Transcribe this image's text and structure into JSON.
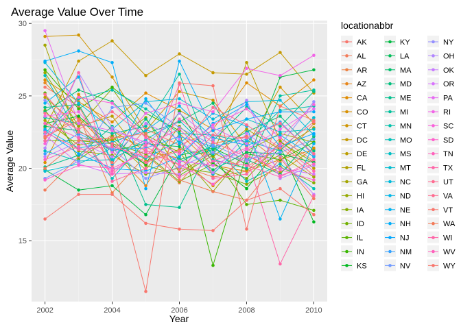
{
  "chart_data": {
    "type": "line",
    "title": "Average Value Over Time",
    "xlabel": "Year",
    "ylabel": "Average Value",
    "xlim": [
      2001.6,
      2010.4
    ],
    "ylim": [
      10.8,
      30.2
    ],
    "x_ticks": [
      2002,
      2004,
      2006,
      2008,
      2010
    ],
    "y_ticks": [
      15,
      20,
      25,
      30
    ],
    "grid": true,
    "legend_title": "locationabbr",
    "legend_position": "right",
    "x": [
      2002,
      2003,
      2004,
      2005,
      2006,
      2007,
      2008,
      2009,
      2010
    ],
    "series": [
      {
        "name": "AK",
        "color": "#F8766D",
        "values": [
          25.6,
          24.3,
          20.2,
          22.7,
          21.6,
          22.6,
          20.1,
          21.5,
          19.5
        ]
      },
      {
        "name": "AL",
        "color": "#F37B59",
        "values": [
          18.5,
          20.8,
          22.3,
          21.5,
          20.2,
          19.4,
          19.8,
          22.1,
          20.5
        ]
      },
      {
        "name": "AR",
        "color": "#ED8141",
        "values": [
          22.1,
          23.6,
          18.3,
          20.9,
          19.0,
          21.7,
          22.2,
          20.4,
          23.1
        ]
      },
      {
        "name": "AZ",
        "color": "#E7861B",
        "values": [
          25.9,
          23.5,
          21.2,
          18.8,
          22.4,
          20.2,
          19.8,
          20.6,
          21.3
        ]
      },
      {
        "name": "CA",
        "color": "#E08B00",
        "values": [
          26.1,
          24.6,
          23.2,
          25.2,
          24.0,
          22.7,
          25.9,
          24.3,
          26.1
        ]
      },
      {
        "name": "CO",
        "color": "#D89000",
        "values": [
          20.4,
          25.1,
          22.6,
          21.2,
          20.7,
          18.8,
          20.9,
          19.7,
          21.4
        ]
      },
      {
        "name": "CT",
        "color": "#CF9400",
        "values": [
          29.1,
          29.2,
          26.3,
          22.6,
          25.3,
          24.7,
          21.5,
          25.6,
          23.1
        ]
      },
      {
        "name": "DC",
        "color": "#C59900",
        "values": [
          22.8,
          27.4,
          28.8,
          26.4,
          27.9,
          26.6,
          26.5,
          28.0,
          25.2
        ]
      },
      {
        "name": "DE",
        "color": "#BB9D00",
        "values": [
          24.9,
          22.9,
          23.6,
          20.5,
          21.3,
          20.9,
          27.3,
          21.9,
          20.0
        ]
      },
      {
        "name": "FL",
        "color": "#AFA100",
        "values": [
          23.3,
          21.6,
          22.0,
          19.9,
          22.9,
          20.8,
          22.7,
          21.3,
          22.8
        ]
      },
      {
        "name": "GA",
        "color": "#A3A500",
        "values": [
          28.5,
          22.1,
          21.9,
          23.5,
          19.7,
          21.1,
          19.9,
          20.9,
          19.4
        ]
      },
      {
        "name": "HI",
        "color": "#95A900",
        "values": [
          26.6,
          22.9,
          25.5,
          22.3,
          21.1,
          18.4,
          21.2,
          22.4,
          21.8
        ]
      },
      {
        "name": "IA",
        "color": "#85AD00",
        "values": [
          24.0,
          21.2,
          20.9,
          19.6,
          20.0,
          19.7,
          18.9,
          20.1,
          19.0
        ]
      },
      {
        "name": "ID",
        "color": "#72B000",
        "values": [
          21.9,
          21.9,
          21.7,
          21.0,
          19.1,
          20.3,
          19.3,
          21.8,
          20.4
        ]
      },
      {
        "name": "IL",
        "color": "#5BB300",
        "values": [
          25.2,
          20.6,
          22.2,
          20.2,
          19.5,
          20.9,
          17.5,
          17.8,
          17.1
        ]
      },
      {
        "name": "IN",
        "color": "#39B600",
        "values": [
          26.8,
          24.1,
          25.6,
          23.8,
          22.6,
          13.3,
          21.0,
          20.6,
          21.8
        ]
      },
      {
        "name": "KS",
        "color": "#00B81F",
        "values": [
          23.1,
          23.6,
          21.6,
          20.3,
          23.9,
          20.4,
          18.6,
          21.5,
          16.3
        ]
      },
      {
        "name": "KY",
        "color": "#00BA42",
        "values": [
          19.9,
          18.5,
          18.8,
          16.8,
          20.9,
          21.4,
          20.3,
          26.3,
          26.8
        ]
      },
      {
        "name": "LA",
        "color": "#00BC59",
        "values": [
          22.9,
          22.6,
          21.2,
          21.7,
          21.5,
          19.9,
          21.1,
          21.0,
          20.4
        ]
      },
      {
        "name": "MA",
        "color": "#00BE6C",
        "values": [
          23.9,
          25.4,
          24.6,
          22.4,
          23.2,
          24.5,
          20.6,
          19.6,
          22.2
        ]
      },
      {
        "name": "MD",
        "color": "#00BF7D",
        "values": [
          24.2,
          24.4,
          20.5,
          23.4,
          20.6,
          21.3,
          22.5,
          23.6,
          21.2
        ]
      },
      {
        "name": "ME",
        "color": "#00C08D",
        "values": [
          20.1,
          20.9,
          22.9,
          17.5,
          17.3,
          21.9,
          24.2,
          22.9,
          25.3
        ]
      },
      {
        "name": "MI",
        "color": "#00C19C",
        "values": [
          23.5,
          23.1,
          22.4,
          22.9,
          26.5,
          20.6,
          20.0,
          25.0,
          25.4
        ]
      },
      {
        "name": "MN",
        "color": "#00C1AA",
        "values": [
          22.4,
          24.8,
          25.4,
          24.1,
          22.4,
          22.3,
          21.8,
          24.0,
          24.3
        ]
      },
      {
        "name": "MO",
        "color": "#00C0B8",
        "values": [
          26.4,
          22.3,
          19.3,
          21.9,
          20.4,
          21.6,
          19.1,
          20.3,
          18.6
        ]
      },
      {
        "name": "MS",
        "color": "#00BFC4",
        "values": [
          21.2,
          20.5,
          20.6,
          22.0,
          23.3,
          21.0,
          23.4,
          22.5,
          22.7
        ]
      },
      {
        "name": "MT",
        "color": "#00BDD0",
        "values": [
          19.8,
          20.3,
          21.4,
          20.7,
          21.9,
          19.6,
          21.9,
          21.2,
          23.5
        ]
      },
      {
        "name": "NC",
        "color": "#00BADC",
        "values": [
          27.3,
          24.5,
          22.7,
          24.6,
          24.8,
          23.4,
          24.6,
          24.7,
          22.3
        ]
      },
      {
        "name": "ND",
        "color": "#00B6E7",
        "values": [
          22.7,
          21.4,
          21.8,
          22.6,
          24.3,
          22.1,
          21.6,
          22.3,
          20.8
        ]
      },
      {
        "name": "NE",
        "color": "#00B2F1",
        "values": [
          24.5,
          26.3,
          20.3,
          24.8,
          21.7,
          23.8,
          22.9,
          16.5,
          21.7
        ]
      },
      {
        "name": "NH",
        "color": "#00ADFA",
        "values": [
          27.4,
          28.1,
          27.3,
          18.6,
          27.4,
          22.6,
          23.4,
          23.9,
          23.9
        ]
      },
      {
        "name": "NJ",
        "color": "#00A7FF",
        "values": [
          22.6,
          21.0,
          20.0,
          19.8,
          20.8,
          23.1,
          24.4,
          21.5,
          22.4
        ]
      },
      {
        "name": "NM",
        "color": "#35A2FF",
        "values": [
          21.0,
          22.4,
          21.3,
          21.4,
          22.2,
          21.5,
          22.0,
          23.2,
          20.9
        ]
      },
      {
        "name": "NV",
        "color": "#709AFF",
        "values": [
          19.3,
          20.5,
          24.2,
          24.5,
          22.8,
          21.6,
          20.6,
          21.1,
          22.0
        ]
      },
      {
        "name": "NY",
        "color": "#9590FF",
        "values": [
          24.7,
          22.2,
          21.4,
          19.3,
          20.1,
          21.1,
          20.5,
          21.6,
          24.6
        ]
      },
      {
        "name": "OH",
        "color": "#B186FF",
        "values": [
          21.4,
          26.6,
          22.8,
          21.6,
          23.8,
          22.0,
          24.7,
          19.3,
          20.2
        ]
      },
      {
        "name": "OK",
        "color": "#C77CFF",
        "values": [
          20.8,
          21.8,
          20.8,
          23.1,
          22.0,
          19.7,
          22.4,
          20.8,
          18.2
        ]
      },
      {
        "name": "OR",
        "color": "#D874FD",
        "values": [
          22.3,
          20.3,
          19.6,
          19.7,
          19.6,
          22.8,
          21.7,
          20.0,
          19.6
        ]
      },
      {
        "name": "PA",
        "color": "#E76BF3",
        "values": [
          29.5,
          23.1,
          22.6,
          21.8,
          20.5,
          20.2,
          21.3,
          22.7,
          24.1
        ]
      },
      {
        "name": "RI",
        "color": "#F265E7",
        "values": [
          23.6,
          23.9,
          21.1,
          23.8,
          24.5,
          23.9,
          26.9,
          26.4,
          27.8
        ]
      },
      {
        "name": "SC",
        "color": "#FA62DB",
        "values": [
          21.7,
          24.9,
          24.5,
          22.1,
          21.0,
          23.0,
          24.1,
          22.1,
          24.4
        ]
      },
      {
        "name": "SD",
        "color": "#FF61CC",
        "values": [
          19.2,
          20.2,
          20.0,
          21.1,
          20.3,
          18.9,
          20.9,
          19.9,
          19.2
        ]
      },
      {
        "name": "TN",
        "color": "#FF62BC",
        "values": [
          20.6,
          21.5,
          19.8,
          21.3,
          19.4,
          20.5,
          20.2,
          19.4,
          20.6
        ]
      },
      {
        "name": "TX",
        "color": "#FF66A8",
        "values": [
          21.9,
          26.6,
          19.1,
          20.0,
          25.8,
          19.3,
          19.6,
          21.7,
          19.8
        ]
      },
      {
        "name": "UT",
        "color": "#FF6C91",
        "values": [
          23.8,
          22.7,
          23.9,
          22.2,
          19.9,
          22.3,
          22.1,
          23.1,
          21.0
        ]
      },
      {
        "name": "VA",
        "color": "#FF6C91",
        "values": [
          25.1,
          22.5,
          21.7,
          20.4,
          21.2,
          24.2,
          23.0,
          21.4,
          23.2
        ]
      },
      {
        "name": "VT",
        "color": "#F8766D",
        "values": [
          22.2,
          23.3,
          20.4,
          11.5,
          25.9,
          25.7,
          15.8,
          24.3,
          23.3
        ]
      },
      {
        "name": "WA",
        "color": "#F37B59",
        "values": [
          20.0,
          21.9,
          22.1,
          22.4,
          19.2,
          18.4,
          17.8,
          20.7,
          17.9
        ]
      },
      {
        "name": "WI",
        "color": "#FF66A8",
        "values": [
          22.5,
          21.3,
          21.5,
          20.8,
          23.4,
          21.8,
          20.8,
          13.4,
          18.1
        ]
      },
      {
        "name": "WV",
        "color": "#FF62BC",
        "values": [
          23.1,
          22.1,
          19.6,
          21.6,
          22.7,
          20.5,
          21.4,
          19.5,
          20.3
        ]
      },
      {
        "name": "WY",
        "color": "#F8766D",
        "values": [
          16.5,
          18.2,
          18.2,
          16.2,
          15.8,
          15.7,
          17.8,
          18.6,
          16.8
        ]
      }
    ]
  }
}
